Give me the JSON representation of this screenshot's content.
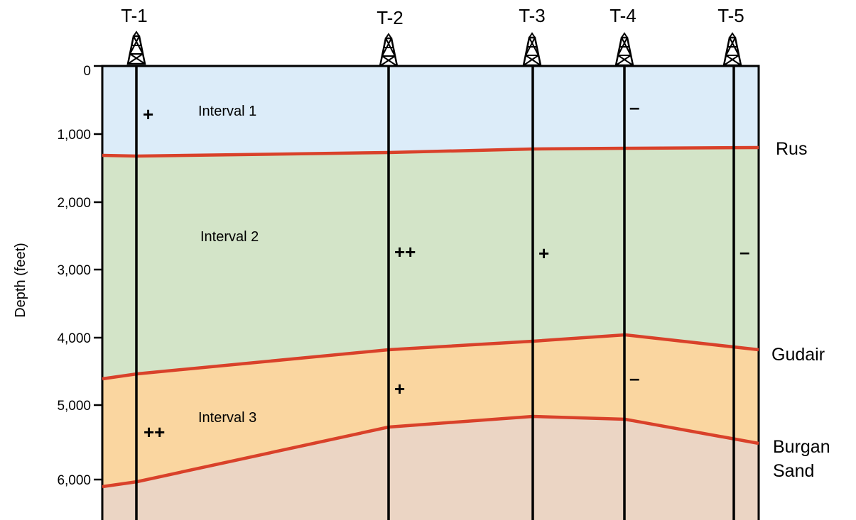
{
  "wells": [
    {
      "id": "T-1"
    },
    {
      "id": "T-2"
    },
    {
      "id": "T-3"
    },
    {
      "id": "T-4"
    },
    {
      "id": "T-5"
    }
  ],
  "y_axis": {
    "label": "Depth (feet)",
    "ticks": [
      "0",
      "1,000",
      "2,000",
      "3,000",
      "4,000",
      "5,000",
      "6,000"
    ]
  },
  "intervals": [
    "Interval 1",
    "Interval 2",
    "Interval 3"
  ],
  "formations": [
    "Rus",
    "Gudair",
    "Burgan",
    "Sand"
  ],
  "colors": {
    "interval_1": "#dcecf9",
    "interval_2": "#d3e4c8",
    "interval_3": "#fad6a0",
    "burgan": "#ebd5c4",
    "horizon": "#d9412a"
  },
  "signs": {
    "t1_interval1": "+",
    "t1_interval3": "++",
    "t2_interval2": "++",
    "t2_interval3": "+",
    "t3_interval2": "+",
    "t4_interval1": "–",
    "t4_interval3": "–",
    "t5_interval2": "–"
  }
}
